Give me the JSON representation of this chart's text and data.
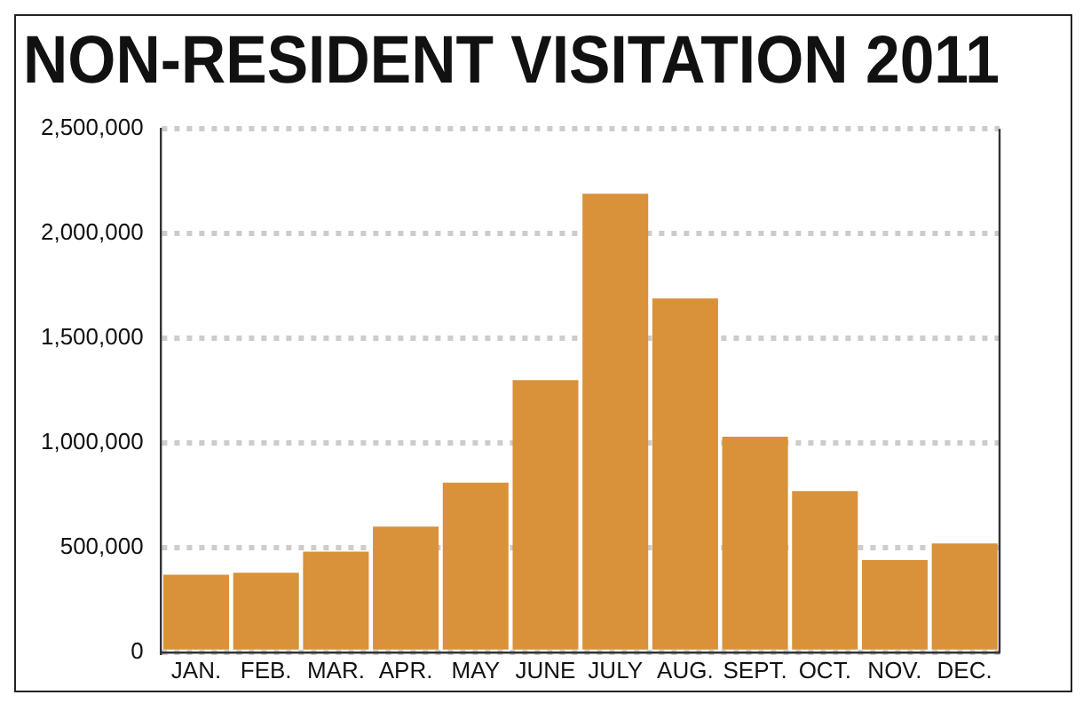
{
  "chart_data": {
    "type": "bar",
    "title": "NON-RESIDENT VISITATION 2011",
    "categories": [
      "JAN.",
      "FEB.",
      "MAR.",
      "APR.",
      "MAY",
      "JUNE",
      "JULY",
      "AUG.",
      "SEPT.",
      "OCT.",
      "NOV.",
      "DEC."
    ],
    "values": [
      370000,
      380000,
      480000,
      600000,
      810000,
      1300000,
      2190000,
      1690000,
      1030000,
      770000,
      440000,
      520000
    ],
    "color": "#d9913a",
    "ylim": [
      0,
      2500000
    ],
    "yticks": [
      {
        "value": 0,
        "label": "0"
      },
      {
        "value": 500000,
        "label": "500,000"
      },
      {
        "value": 1000000,
        "label": "1,000,000"
      },
      {
        "value": 1500000,
        "label": "1,500,000"
      },
      {
        "value": 2000000,
        "label": "2,000,000"
      },
      {
        "value": 2500000,
        "label": "2,500,000"
      }
    ],
    "grid": "y",
    "legend": false
  }
}
